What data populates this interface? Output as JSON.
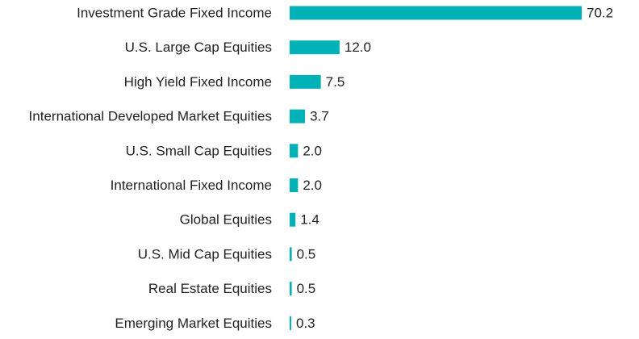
{
  "chart_data": {
    "type": "bar",
    "orientation": "horizontal",
    "title": "",
    "xlabel": "",
    "ylabel": "",
    "categories": [
      "Investment Grade Fixed Income",
      "U.S. Large Cap Equities",
      "High Yield Fixed Income",
      "International Developed Market Equities",
      "U.S. Small Cap Equities",
      "International Fixed Income",
      "Global Equities",
      "U.S. Mid Cap Equities",
      "Real Estate Equities",
      "Emerging Market Equities"
    ],
    "values": [
      70.2,
      12.0,
      7.5,
      3.7,
      2.0,
      2.0,
      1.4,
      0.5,
      0.5,
      0.3
    ],
    "value_labels": [
      "70.2",
      "12.0",
      "7.5",
      "3.7",
      "2.0",
      "2.0",
      "1.4",
      "0.5",
      "0.5",
      "0.3"
    ],
    "xlim": [
      0,
      70.2
    ],
    "grid": false,
    "legend": "none",
    "bar_color": "#00b2b8"
  }
}
